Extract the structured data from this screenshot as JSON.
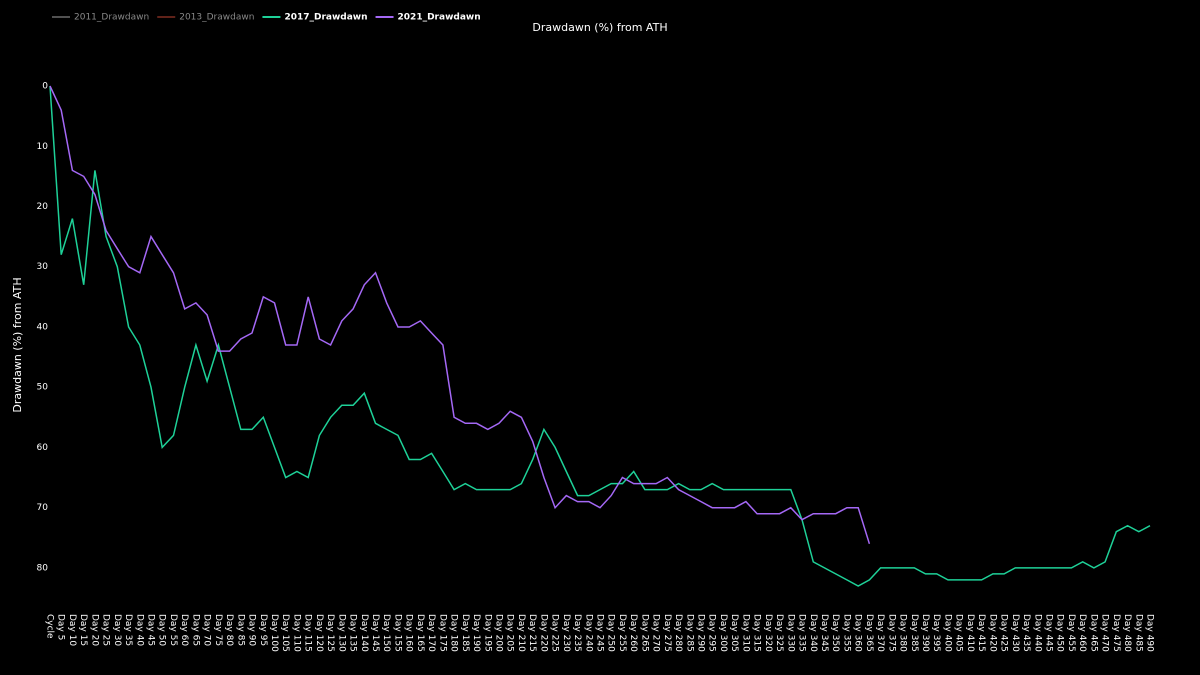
{
  "chart_data": {
    "type": "line",
    "title": "Drawdawn (%) from ATH",
    "ylabel": "Drawdawn (%) from ATH",
    "categories": [
      "Cycle",
      "Day 5",
      "Day 10",
      "Day 15",
      "Day 20",
      "Day 25",
      "Day 30",
      "Day 35",
      "Day 40",
      "Day 45",
      "Day 50",
      "Day 55",
      "Day 60",
      "Day 65",
      "Day 70",
      "Day 75",
      "Day 80",
      "Day 85",
      "Day 90",
      "Day 95",
      "Day 100",
      "Day 105",
      "Day 110",
      "Day 115",
      "Day 120",
      "Day 125",
      "Day 130",
      "Day 135",
      "Day 140",
      "Day 145",
      "Day 150",
      "Day 155",
      "Day 160",
      "Day 165",
      "Day 170",
      "Day 175",
      "Day 180",
      "Day 185",
      "Day 190",
      "Day 195",
      "Day 200",
      "Day 205",
      "Day 210",
      "Day 215",
      "Day 220",
      "Day 225",
      "Day 230",
      "Day 235",
      "Day 240",
      "Day 245",
      "Day 250",
      "Day 255",
      "Day 260",
      "Day 265",
      "Day 270",
      "Day 275",
      "Day 280",
      "Day 285",
      "Day 290",
      "Day 295",
      "Day 300",
      "Day 305",
      "Day 310",
      "Day 315",
      "Day 320",
      "Day 325",
      "Day 330",
      "Day 335",
      "Day 340",
      "Day 345",
      "Day 350",
      "Day 355",
      "Day 360",
      "Day 365",
      "Day 370",
      "Day 375",
      "Day 380",
      "Day 385",
      "Day 390",
      "Day 395",
      "Day 400",
      "Day 405",
      "Day 410",
      "Day 415",
      "Day 420",
      "Day 425",
      "Day 430",
      "Day 435",
      "Day 440",
      "Day 445",
      "Day 450",
      "Day 455",
      "Day 460",
      "Day 465",
      "Day 470",
      "Day 475",
      "Day 480",
      "Day 485",
      "Day 490"
    ],
    "series": [
      {
        "name": "2011_Drawdawn",
        "color": "#888888",
        "visible": false
      },
      {
        "name": "2013_Drawdawn",
        "color": "#a0392b",
        "visible": false
      },
      {
        "name": "2017_Drawdawn",
        "color": "#1ed198",
        "visible": true,
        "values": [
          0,
          28,
          22,
          33,
          14,
          25,
          30,
          40,
          43,
          50,
          60,
          58,
          50,
          43,
          49,
          43,
          50,
          57,
          57,
          55,
          60,
          65,
          64,
          65,
          58,
          55,
          53,
          53,
          51,
          56,
          57,
          58,
          62,
          62,
          61,
          64,
          67,
          66,
          67,
          67,
          67,
          67,
          66,
          62,
          57,
          60,
          64,
          68,
          68,
          67,
          66,
          66,
          64,
          67,
          67,
          67,
          66,
          67,
          67,
          66,
          67,
          67,
          67,
          67,
          67,
          67,
          67,
          72,
          79,
          80,
          81,
          82,
          83,
          82,
          80,
          80,
          80,
          80,
          81,
          81,
          82,
          82,
          82,
          82,
          81,
          81,
          80,
          80,
          80,
          80,
          80,
          80,
          79,
          80,
          79,
          74,
          73,
          74,
          73
        ]
      },
      {
        "name": "2021_Drawdawn",
        "color": "#a468f5",
        "visible": true,
        "values": [
          0,
          4,
          14,
          15,
          18,
          24,
          27,
          30,
          31,
          25,
          28,
          31,
          37,
          36,
          38,
          44,
          44,
          42,
          41,
          35,
          36,
          43,
          43,
          35,
          42,
          43,
          39,
          37,
          33,
          31,
          36,
          40,
          40,
          39,
          41,
          43,
          55,
          56,
          56,
          57,
          56,
          54,
          55,
          59,
          65,
          70,
          68,
          69,
          69,
          70,
          68,
          65,
          66,
          66,
          66,
          65,
          67,
          68,
          69,
          70,
          70,
          70,
          69,
          71,
          71,
          71,
          70,
          72,
          71,
          71,
          71,
          70,
          70,
          76,
          null,
          null,
          null,
          null,
          null,
          null,
          null,
          null,
          null,
          null,
          null,
          null,
          null,
          null,
          null,
          null,
          null,
          null,
          null,
          null,
          null,
          null,
          null,
          null,
          null
        ]
      }
    ],
    "ylim": [
      -2,
      85
    ],
    "y_reversed": true,
    "yticks": [
      0,
      10,
      20,
      30,
      40,
      50,
      60,
      70,
      80
    ],
    "grid": false,
    "legend": "top-left"
  }
}
